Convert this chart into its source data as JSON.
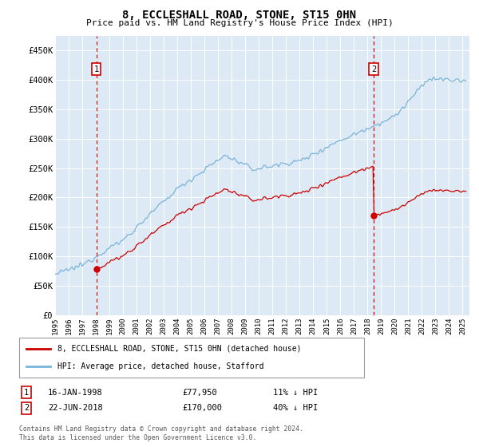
{
  "title": "8, ECCLESHALL ROAD, STONE, ST15 0HN",
  "subtitle": "Price paid vs. HM Land Registry's House Price Index (HPI)",
  "ylabel_ticks": [
    "£0",
    "£50K",
    "£100K",
    "£150K",
    "£200K",
    "£250K",
    "£300K",
    "£350K",
    "£400K",
    "£450K"
  ],
  "ylim": [
    0,
    475000
  ],
  "sale1_t": 1998.04,
  "sale2_t": 2018.46,
  "sale1_price": 77950,
  "sale2_price": 170000,
  "sale1_label": "1",
  "sale2_label": "2",
  "sale1_date": "16-JAN-1998",
  "sale2_date": "22-JUN-2018",
  "sale1_hpi": "11% ↓ HPI",
  "sale2_hpi": "40% ↓ HPI",
  "sale1_price_str": "£77,950",
  "sale2_price_str": "£170,000",
  "legend_line1": "8, ECCLESHALL ROAD, STONE, ST15 0HN (detached house)",
  "legend_line2": "HPI: Average price, detached house, Stafford",
  "footnote1": "Contains HM Land Registry data © Crown copyright and database right 2024.",
  "footnote2": "This data is licensed under the Open Government Licence v3.0.",
  "hpi_color": "#7ab4d8",
  "sale_color": "#cc0000",
  "bg_color": "#ddeaf5"
}
